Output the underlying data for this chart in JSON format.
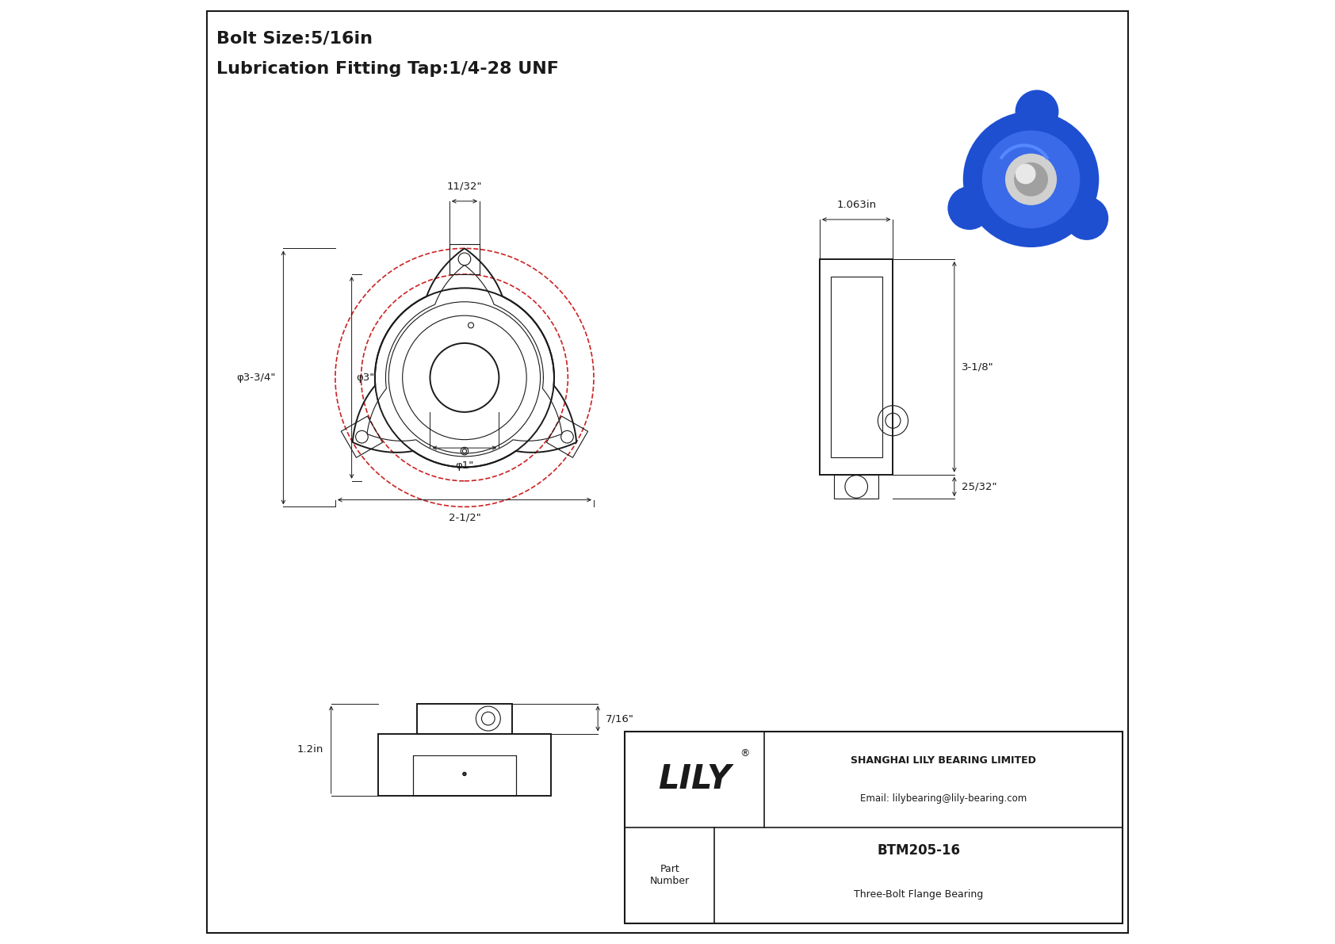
{
  "bg_color": "#ffffff",
  "line_color": "#1a1a1a",
  "red_color": "#cc2222",
  "title_line1": "Bolt Size:5/16in",
  "title_line2": "Lubrication Fitting Tap:1/4-28 UNF",
  "company": "SHANGHAI LILY BEARING LIMITED",
  "email": "Email: lilybearing@lily-bearing.com",
  "part_number": "BTM205-16",
  "part_desc": "Three-Bolt Flange Bearing",
  "dim_11_32": "11/32\"",
  "dim_3_34": "φ3-3/4\"",
  "dim_3": "φ3\"",
  "dim_1": "φ1\"",
  "dim_2_12": "2-1/2\"",
  "dim_1_063": "1.063in",
  "dim_3_18": "3-1/8\"",
  "dim_25_32": "25/32\"",
  "dim_7_16": "7/16\"",
  "dim_1_2": "1.2in",
  "scale": 0.073,
  "fcx": 0.285,
  "fcy": 0.6,
  "scx": 0.7,
  "scy": 0.6,
  "bcx": 0.285,
  "bcy": 0.19
}
